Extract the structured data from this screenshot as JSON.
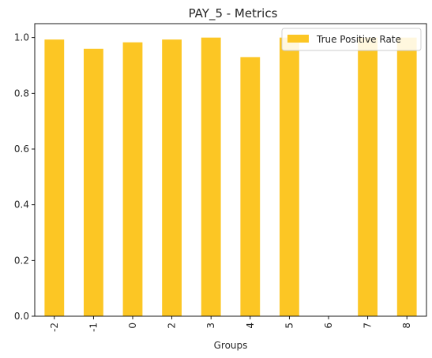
{
  "chart_data": {
    "type": "bar",
    "title": "PAY_5 - Metrics",
    "xlabel": "Groups",
    "ylabel": "",
    "categories": [
      "-2",
      "-1",
      "0",
      "2",
      "3",
      "4",
      "5",
      "6",
      "7",
      "8"
    ],
    "series": [
      {
        "name": "True Positive Rate",
        "color": "#fcc624",
        "values": [
          0.993,
          0.96,
          0.983,
          0.993,
          1.0,
          0.93,
          1.0,
          0.0,
          1.0,
          1.0
        ]
      }
    ],
    "ylim": [
      0,
      1.05
    ],
    "yticks": [
      "0.0",
      "0.2",
      "0.4",
      "0.6",
      "0.8",
      "1.0"
    ],
    "ytick_values": [
      0,
      0.2,
      0.4,
      0.6,
      0.8,
      1.0
    ],
    "grid": false,
    "legend_position": "top-right"
  }
}
